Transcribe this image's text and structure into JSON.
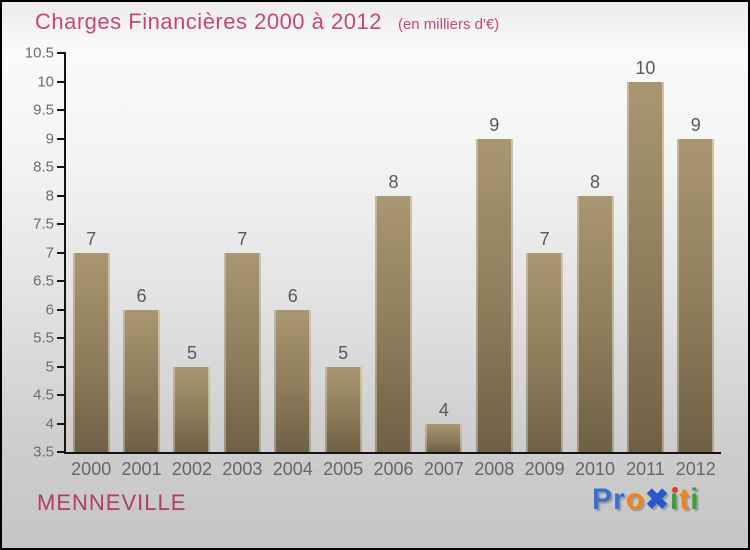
{
  "header": {
    "title": "Charges Financières 2000 à 2012",
    "subtitle": "(en milliers d'€)"
  },
  "footer": {
    "location": "MENNEVILLE",
    "logo": {
      "name": "Proxiti",
      "letters": [
        {
          "ch": "P",
          "color": "#3a6ed0"
        },
        {
          "ch": "r",
          "color": "#3a6ed0"
        },
        {
          "ch": "o",
          "color": "#f08418"
        },
        {
          "ch": "✖",
          "color": "#2558c8",
          "big": true
        },
        {
          "ch": "i",
          "color": "#35a23c",
          "dot": "#e23b2e"
        },
        {
          "ch": "t",
          "color": "#f08418"
        },
        {
          "ch": "i",
          "color": "#35a23c"
        }
      ]
    }
  },
  "colors": {
    "accent_pink": "#c7486f",
    "location_pink": "#b43a6a",
    "bar_top": "#a99772",
    "bar_bottom": "#6f6045",
    "axis_black": "#141414",
    "label_gray": "#666666"
  },
  "chart_data": {
    "type": "bar",
    "title": "Charges Financières 2000 à 2012",
    "subtitle": "(en milliers d'€)",
    "categories": [
      "2000",
      "2001",
      "2002",
      "2003",
      "2004",
      "2005",
      "2006",
      "2007",
      "2008",
      "2009",
      "2010",
      "2011",
      "2012"
    ],
    "values": [
      7,
      6,
      5,
      7,
      6,
      5,
      8,
      4,
      9,
      7,
      8,
      10,
      9
    ],
    "xlabel": "",
    "ylabel": "",
    "ylim": [
      3.5,
      10.5
    ],
    "ytick_step": 0.5,
    "grid": false,
    "legend": false,
    "value_labels_shown": true
  }
}
